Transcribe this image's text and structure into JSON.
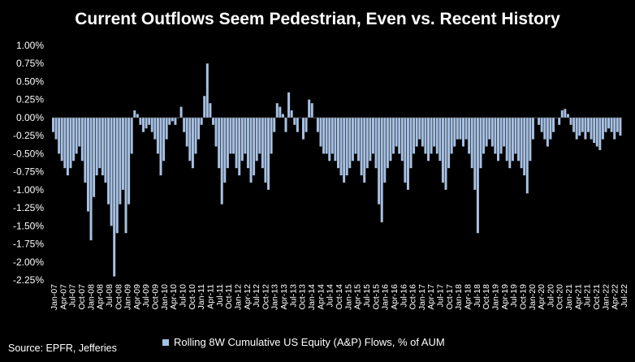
{
  "title": "Current Outflows Seem Pedestrian, Even vs. Recent History",
  "source": "Source: EPFR, Jefferies",
  "colors": {
    "background": "#000000",
    "bar": "#a7c1e3",
    "text": "#ffffff"
  },
  "chart_data": {
    "type": "bar",
    "title": "Current Outflows Seem Pedestrian, Even vs. Recent History",
    "xlabel": "",
    "ylabel": "",
    "ylim": [
      -2.25,
      1.0
    ],
    "yticks": [
      1.0,
      0.75,
      0.5,
      0.25,
      0.0,
      -0.25,
      -0.5,
      -0.75,
      -1.0,
      -1.25,
      -1.5,
      -1.75,
      -2.0,
      -2.25
    ],
    "ytick_labels": [
      "1.00%",
      "0.75%",
      "0.50%",
      "0.25%",
      "0.00%",
      "-0.25%",
      "-0.50%",
      "-0.75%",
      "-1.00%",
      "-1.25%",
      "-1.50%",
      "-1.75%",
      "-2.00%",
      "-2.25%"
    ],
    "xtick_labels": [
      "Jan-07",
      "Apr-07",
      "Jul-07",
      "Oct-07",
      "Jan-08",
      "Apr-08",
      "Jul-08",
      "Oct-08",
      "Jan-09",
      "Apr-09",
      "Jul-09",
      "Oct-09",
      "Jan-10",
      "Apr-10",
      "Jul-10",
      "Oct-10",
      "Jan-11",
      "Apr-11",
      "Jul-11",
      "Oct-11",
      "Jan-12",
      "Apr-12",
      "Jul-12",
      "Oct-12",
      "Jan-13",
      "Apr-13",
      "Jul-13",
      "Oct-13",
      "Jan-14",
      "Apr-14",
      "Jul-14",
      "Oct-14",
      "Jan-15",
      "Apr-15",
      "Jul-15",
      "Oct-15",
      "Jan-16",
      "Apr-16",
      "Jul-16",
      "Oct-16",
      "Jan-17",
      "Apr-17",
      "Jul-17",
      "Oct-17",
      "Jan-18",
      "Apr-18",
      "Jul-18",
      "Oct-18",
      "Jan-19",
      "Apr-19",
      "Jul-19",
      "Oct-19",
      "Jan-20",
      "Apr-20",
      "Jul-20",
      "Oct-20",
      "Jan-21",
      "Apr-21",
      "Jul-21",
      "Oct-21",
      "Jan-22",
      "Apr-22",
      "Jul-22"
    ],
    "series": [
      {
        "name": "Rolling 8W Cumulative US Equity (A&P) Flows, % of AUM",
        "x_start": "Jan-07",
        "x_end": "Aug-22",
        "values": [
          -0.2,
          -0.3,
          -0.5,
          -0.6,
          -0.7,
          -0.8,
          -0.7,
          -0.6,
          -0.5,
          -0.4,
          -0.6,
          -0.9,
          -1.3,
          -1.7,
          -1.1,
          -0.8,
          -0.7,
          -0.8,
          -0.9,
          -1.2,
          -1.5,
          -2.2,
          -1.6,
          -1.2,
          -1.0,
          -1.6,
          -1.2,
          -0.5,
          0.1,
          0.05,
          -0.1,
          -0.2,
          -0.15,
          -0.1,
          -0.2,
          -0.3,
          -0.5,
          -0.8,
          -0.6,
          -0.3,
          -0.1,
          -0.05,
          -0.1,
          0.0,
          0.15,
          -0.2,
          -0.4,
          -0.6,
          -0.7,
          -0.5,
          -0.3,
          -0.1,
          0.3,
          0.75,
          0.2,
          -0.1,
          -0.4,
          -0.7,
          -1.2,
          -0.9,
          -0.7,
          -0.5,
          -0.5,
          -0.7,
          -0.8,
          -0.6,
          -0.5,
          -0.7,
          -0.9,
          -0.8,
          -0.6,
          -0.5,
          -0.7,
          -0.9,
          -1.0,
          -0.5,
          -0.2,
          0.2,
          0.15,
          0.05,
          -0.2,
          0.35,
          0.1,
          -0.1,
          -0.2,
          0.0,
          -0.3,
          -0.2,
          0.25,
          0.2,
          0.0,
          -0.2,
          -0.4,
          -0.5,
          -0.5,
          -0.6,
          -0.5,
          -0.6,
          -0.7,
          -0.8,
          -0.9,
          -0.8,
          -0.7,
          -0.6,
          -0.5,
          -0.6,
          -0.8,
          -0.9,
          -0.7,
          -0.6,
          -0.5,
          -0.7,
          -1.2,
          -1.45,
          -0.9,
          -0.7,
          -0.6,
          -0.5,
          -0.4,
          -0.5,
          -0.6,
          -0.9,
          -1.0,
          -0.7,
          -0.5,
          -0.4,
          -0.3,
          -0.4,
          -0.5,
          -0.6,
          -0.5,
          -0.4,
          -0.5,
          -0.6,
          -0.9,
          -1.0,
          -0.7,
          -0.5,
          -0.4,
          -0.3,
          -0.3,
          -0.4,
          -0.3,
          -0.5,
          -0.7,
          -1.0,
          -1.6,
          -0.7,
          -0.5,
          -0.4,
          -0.3,
          -0.4,
          -0.5,
          -0.6,
          -0.5,
          -0.4,
          -0.6,
          -0.7,
          -0.6,
          -0.5,
          -0.6,
          -0.7,
          -0.8,
          -1.05,
          -0.6,
          -0.3,
          0.0,
          -0.1,
          -0.2,
          -0.3,
          -0.4,
          -0.3,
          -0.2,
          0.0,
          -0.1,
          0.1,
          0.12,
          0.05,
          -0.1,
          -0.2,
          -0.3,
          -0.25,
          -0.2,
          -0.3,
          -0.2,
          -0.3,
          -0.35,
          -0.4,
          -0.45,
          -0.3,
          -0.2,
          -0.15,
          -0.2,
          -0.3,
          -0.2,
          -0.25
        ]
      }
    ],
    "legend": "bottom-center",
    "grid": false
  }
}
